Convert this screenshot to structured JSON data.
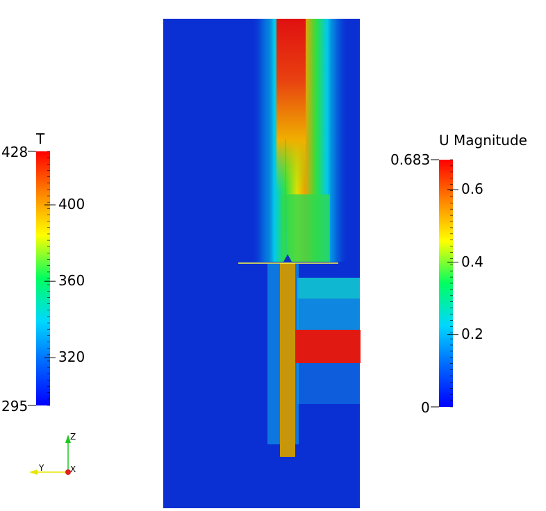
{
  "colors": {
    "background": "#ffffff",
    "field_low": "#0a2fd2",
    "heater": "#c8960a",
    "inlet": "#e01a12",
    "cut_line": "#ffff40"
  },
  "colormap": [
    "#0000ff",
    "#0070ff",
    "#00d8ff",
    "#00ff60",
    "#ffff00",
    "#ff8000",
    "#ff0000"
  ],
  "temperature_bar": {
    "title": "T",
    "range": [
      295,
      428
    ],
    "range_labels": [
      "428",
      "295"
    ],
    "ticks": [
      {
        "value": 400,
        "label": "400"
      },
      {
        "value": 360,
        "label": "360"
      },
      {
        "value": 320,
        "label": "320"
      }
    ]
  },
  "velocity_bar": {
    "title": "U Magnitude",
    "range": [
      0,
      0.683
    ],
    "range_labels": [
      "0.683",
      "0"
    ],
    "ticks": [
      {
        "value": 0.6,
        "label": "0.6"
      },
      {
        "value": 0.4,
        "label": "0.4"
      },
      {
        "value": 0.2,
        "label": "0.2"
      }
    ]
  },
  "orientation_axes": {
    "z_label": "Z",
    "y_label": "Y",
    "x_label": "X",
    "z_color": "#1ec81e",
    "y_color": "#e6e600",
    "x_color": "#e02020"
  }
}
